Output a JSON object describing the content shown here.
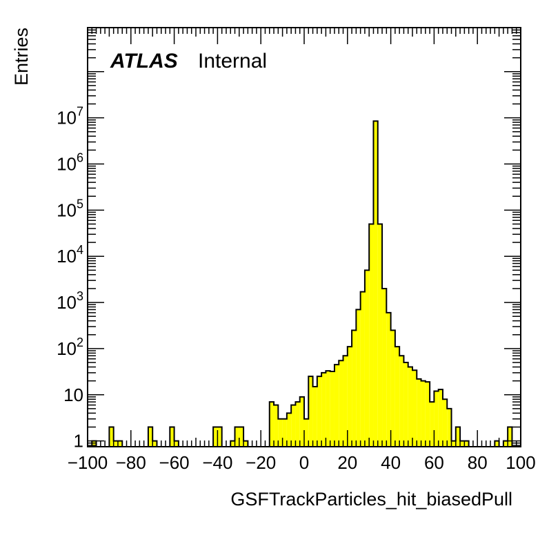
{
  "label": {
    "experiment": "ATLAS",
    "status": "Internal"
  },
  "chart_data": {
    "type": "bar",
    "histogram": true,
    "xlabel": "GSFTrackParticles_hit_biasedPull",
    "ylabel": "Entries",
    "xlim": [
      -100,
      100
    ],
    "ylim": [
      0.75,
      900000000
    ],
    "log_y": true,
    "bin_width": 2,
    "fill_color": "#ffff00",
    "edge_color": "#000000",
    "x_ticks": [
      -100,
      -80,
      -60,
      -40,
      -20,
      0,
      20,
      40,
      60,
      80,
      100
    ],
    "x_tick_labels": [
      "−100",
      "−80",
      "−60",
      "−40",
      "−20",
      "0",
      "20",
      "40",
      "60",
      "80",
      "100"
    ],
    "y_ticks": [
      {
        "value": 1,
        "base": "1",
        "exp": ""
      },
      {
        "value": 10,
        "base": "10",
        "exp": ""
      },
      {
        "value": 100,
        "base": "10",
        "exp": "2"
      },
      {
        "value": 1000,
        "base": "10",
        "exp": "3"
      },
      {
        "value": 10000,
        "base": "10",
        "exp": "4"
      },
      {
        "value": 100000,
        "base": "10",
        "exp": "5"
      },
      {
        "value": 1000000,
        "base": "10",
        "exp": "6"
      },
      {
        "value": 10000000,
        "base": "10",
        "exp": "7"
      }
    ],
    "x": [
      -100,
      -98,
      -96,
      -94,
      -92,
      -90,
      -88,
      -86,
      -84,
      -82,
      -80,
      -78,
      -76,
      -74,
      -72,
      -70,
      -68,
      -66,
      -64,
      -62,
      -60,
      -58,
      -56,
      -54,
      -52,
      -50,
      -48,
      -46,
      -44,
      -42,
      -40,
      -38,
      -36,
      -34,
      -32,
      -30,
      -28,
      -26,
      -24,
      -22,
      -20,
      -18,
      -16,
      -14,
      -12,
      -10,
      -8,
      -6,
      -4,
      -2,
      0,
      2,
      4,
      6,
      8,
      10,
      12,
      14,
      16,
      18,
      20,
      22,
      24,
      26,
      28,
      30,
      32,
      34,
      36,
      38,
      40,
      42,
      44,
      46,
      48,
      50,
      52,
      54,
      56,
      58,
      60,
      62,
      64,
      66,
      68,
      70,
      72,
      74,
      76,
      78,
      80,
      82,
      84,
      86,
      88,
      90,
      92,
      94,
      96,
      98
    ],
    "values": [
      0,
      1,
      0,
      0,
      0,
      2,
      1,
      1,
      0,
      0,
      0,
      0,
      0,
      0,
      2,
      1,
      0,
      0,
      0,
      2,
      1,
      0,
      0,
      0,
      0,
      0,
      0,
      0,
      0,
      2,
      2,
      0,
      0,
      1,
      2,
      2,
      1,
      0,
      0,
      0,
      0,
      0,
      7,
      6,
      3,
      3,
      4,
      6,
      7,
      9,
      3,
      25,
      15,
      25,
      30,
      33,
      32,
      45,
      55,
      70,
      110,
      250,
      700,
      1700,
      5000,
      50000,
      8500000,
      50000,
      2000,
      600,
      250,
      110,
      70,
      50,
      40,
      34,
      22,
      20,
      19,
      7,
      12,
      13,
      8,
      5,
      1,
      2,
      1,
      1,
      0,
      0,
      0,
      0,
      0,
      0,
      1,
      0,
      1,
      2,
      0,
      0
    ]
  }
}
